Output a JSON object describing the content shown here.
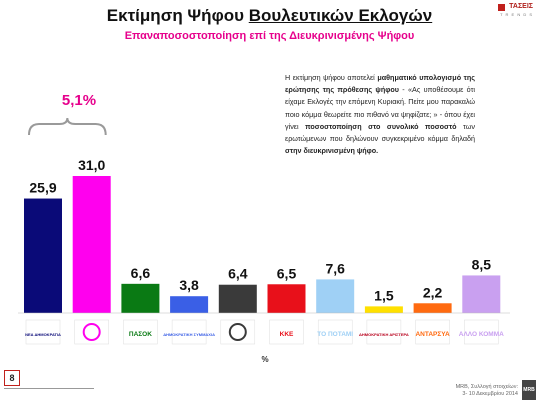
{
  "title_part1": "Εκτίμηση Ψήφου ",
  "title_part2": "Βουλευτικών Εκλογών",
  "subtitle": "Επαναποσοστοποίηση επί της Διευκρινισμένης Ψήφου",
  "brand": {
    "name": "ΤΑΣΕΙΣ",
    "tagline": "T R E N D S"
  },
  "note_html": "Η εκτίμηση ψήφου αποτελεί <b>μαθηματικό υπολογισμό της ερώτησης της πρόθεσης ψήφου</b> - «Ας υποθέσουμε ότι είχαμε Εκλογές την επόμενη Κυριακή. Πείτε μου παρακαλώ ποιο κόμμα θεωρείτε πιο πιθανό να ψηφίζατε; » - όπου έχει γίνει <b>ποσοστοποίηση στο συνολικό ποσοστό</b> των ερωτώμενων που δηλώνουν συγκεκριμένο κόμμα δηλαδή <b>στην διευκρινισμένη ψήφο.</b>",
  "page_number": "8",
  "source": {
    "line1": "MRB, Συλλογή στοιχείων:",
    "line2": "3- 10 Δεκεμβρίου 2014"
  },
  "mrb_logo": "MRB",
  "colors": {
    "accent": "#e6008c",
    "brand_red": "#c0201c"
  },
  "chart_data": {
    "type": "bar",
    "categories": [
      "ΝΕΑ ΔΗΜΟΚΡΑΤΙΑ",
      "ΣΥΡΙΖΑ",
      "ΠΑΣΟΚ",
      "ΔΗΜΟΚΡΑΤΙΚΗ ΣΥΜΜΑΧΙΑ",
      "ΧΡΥΣΗ ΑΥΓΗ",
      "ΚΚΕ",
      "ΤΟ ΠΟΤΑΜΙ",
      "ΔΗΜΟΚΡΑΤΙΚΗ ΑΡΙΣΤΕΡΑ",
      "ΑΝΤΑΡΣΥΑ",
      "ΑΛΛΟ ΚΟΜΜΑ"
    ],
    "values": [
      25.9,
      31.0,
      6.6,
      3.8,
      6.4,
      6.5,
      7.6,
      1.5,
      2.2,
      8.5
    ],
    "value_labels": [
      "25,9",
      "31,0",
      "6,6",
      "3,8",
      "6,4",
      "6,5",
      "7,6",
      "1,5",
      "2,2",
      "8,5"
    ],
    "colors": [
      "#0a0a78",
      "#ff00ee",
      "#0a7a14",
      "#3a5fe6",
      "#3a3a3a",
      "#e8101a",
      "#9fd0f5",
      "#ffe000",
      "#ff6a10",
      "#c9a0f0"
    ],
    "logo_texts": [
      "ΝΕΑ ΔΗΜΟΚΡΑΤΙΑ",
      "",
      "ΠΑΣΟΚ",
      "ΔΗΜΟΚΡΑΤΙΚΗ ΣΥΜΜΑΧΙΑ",
      "",
      "ΚΚΕ",
      "ΤΟ ΠΟΤΑΜΙ",
      "ΔΗΜΟΚΡΑΤΙΚΗ ΑΡΙΣΤΕΡΑ",
      "ΑΝΤΑΡΣΥΑ",
      "ΑΛΛΟ ΚΟΜΜΑ"
    ],
    "annotation": "5,1%",
    "xlabel": "%",
    "ylim": [
      0,
      31.0
    ]
  }
}
